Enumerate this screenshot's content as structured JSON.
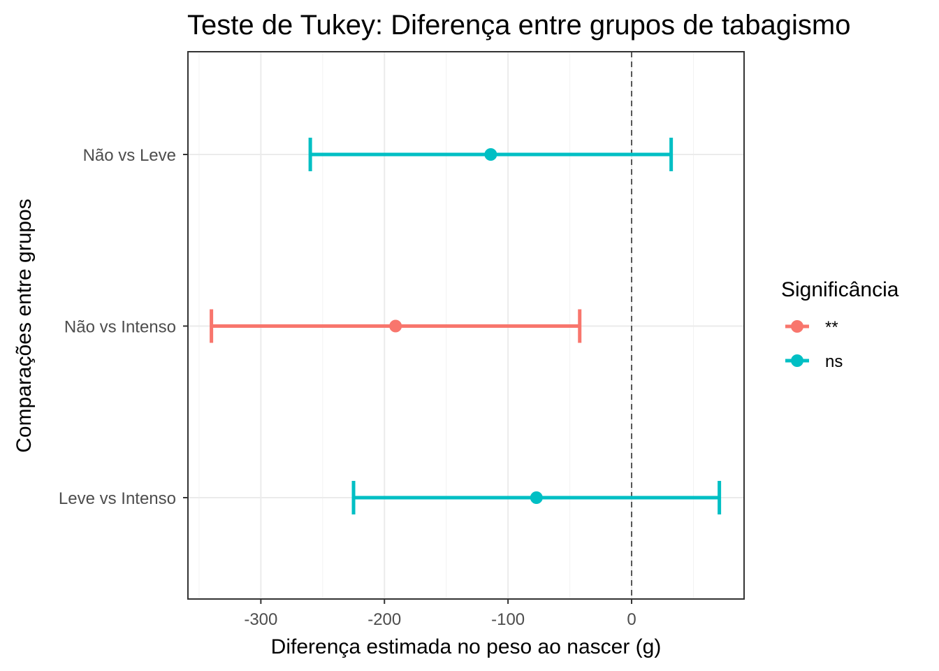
{
  "chart_data": {
    "type": "errorbar",
    "title": "Teste de Tukey: Diferença entre grupos de tabagismo",
    "xlabel": "Diferença estimada no peso ao nascer (g)",
    "ylabel": "Comparações entre grupos",
    "xlim": [
      -359,
      91
    ],
    "xticks": [
      -300,
      -200,
      -100,
      0
    ],
    "xtick_labels": [
      "-300",
      "-200",
      "-100",
      "0"
    ],
    "reference_line": 0,
    "grid": true,
    "categories": [
      "Não vs Leve",
      "Não vs Intenso",
      "Leve vs Intenso"
    ],
    "points": [
      {
        "label": "Não vs Leve",
        "estimate": -114,
        "lower": -260,
        "upper": 32,
        "significance": "ns"
      },
      {
        "label": "Não vs Intenso",
        "estimate": -191,
        "lower": -340,
        "upper": -42,
        "significance": "**"
      },
      {
        "label": "Leve vs Intenso",
        "estimate": -77,
        "lower": -225,
        "upper": 71,
        "significance": "ns"
      }
    ],
    "legend": {
      "title": "Significância",
      "placement": "right",
      "entries": [
        {
          "label": "**",
          "color": "#F8766D"
        },
        {
          "label": "ns",
          "color": "#00BFC4"
        }
      ]
    }
  }
}
